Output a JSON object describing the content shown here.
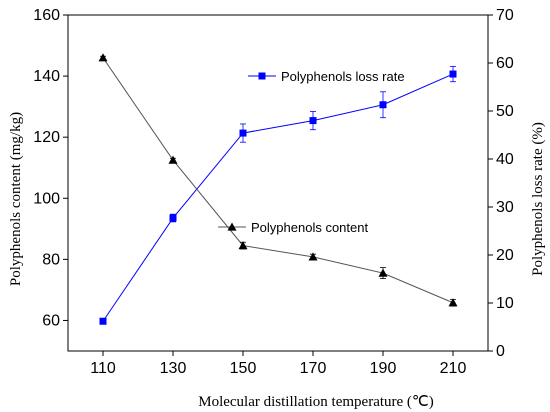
{
  "chart_data": {
    "type": "line",
    "xlabel": "Molecular distillation temperature (℃)",
    "ylabel_left": "Polyphenols content (mg/kg)",
    "ylabel_right": "Polyphenols loss rate (%)",
    "x": [
      110,
      130,
      150,
      170,
      190,
      210
    ],
    "xticks": [
      "110",
      "130",
      "150",
      "170",
      "190",
      "210"
    ],
    "xlim": [
      100,
      220
    ],
    "ylim_left": [
      50,
      160
    ],
    "ylim_right": [
      0,
      70
    ],
    "yticks_left": [
      "60",
      "80",
      "100",
      "120",
      "140",
      "160"
    ],
    "yticks_right": [
      "0",
      "10",
      "20",
      "30",
      "40",
      "50",
      "60",
      "70"
    ],
    "grid": false,
    "series": [
      {
        "name": "Polyphenols loss rate",
        "axis": "right",
        "marker": "square",
        "color": "#0000ff",
        "values": [
          6.2,
          27.7,
          45.4,
          48.0,
          51.3,
          57.7
        ],
        "errors": [
          0.3,
          0.8,
          1.9,
          1.9,
          2.7,
          1.6
        ]
      },
      {
        "name": "Polyphenols content",
        "axis": "left",
        "marker": "triangle",
        "color": "#000000",
        "line_color": "#555555",
        "values": [
          146,
          112.5,
          84.5,
          80.8,
          75.5,
          65.8
        ],
        "errors": [
          0.5,
          0.6,
          1.1,
          0.9,
          1.8,
          1.1
        ]
      }
    ],
    "legend": [
      {
        "label": "Polyphenols loss rate",
        "series": 0
      },
      {
        "label": "Polyphenols content",
        "series": 1
      }
    ]
  }
}
